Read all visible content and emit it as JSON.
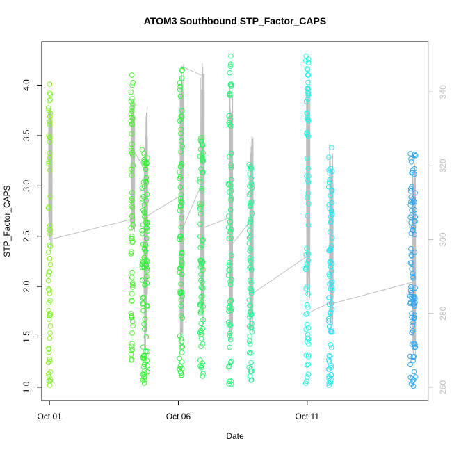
{
  "chart_data": {
    "type": "scatter",
    "title": "ATOM3 Southbound STP_Factor_CAPS",
    "xlabel": "Date",
    "ylabel": "STP_Factor_CAPS",
    "ylim": [
      1.0,
      4.3
    ],
    "y_right_lim": [
      260,
      350
    ],
    "x_ticks": [
      {
        "day": 1,
        "label": "Oct 01"
      },
      {
        "day": 6,
        "label": "Oct 06"
      },
      {
        "day": 11,
        "label": "Oct 11"
      }
    ],
    "y_ticks": [
      "1.0",
      "1.5",
      "2.0",
      "2.5",
      "3.0",
      "3.5",
      "4.0"
    ],
    "y_right_ticks": [
      "260",
      "280",
      "300",
      "320",
      "340"
    ],
    "xlim_days": [
      0.7,
      15.7
    ],
    "colors": {
      "axis": "#000000",
      "secondary_axis": "#bfbfbf",
      "secondary_line": "#bebebe",
      "point_palette": [
        "#7fff00",
        "#00ff00",
        "#00ff7f",
        "#00ffff",
        "#1e90ff"
      ]
    },
    "marker": "open-circle",
    "clusters": [
      {
        "day": 1.0,
        "width": 0.08,
        "color": "#86f22b",
        "y_min": 1.02,
        "y_max": 4.01,
        "y_right_min": 296,
        "y_right_max": 336
      },
      {
        "day": 4.2,
        "width": 0.08,
        "color": "#4cf22e",
        "y_min": 1.27,
        "y_max": 4.1,
        "y_right_min": 302,
        "y_right_max": 340
      },
      {
        "day": 4.7,
        "width": 0.22,
        "color": "#34f232",
        "y_min": 1.04,
        "y_max": 3.36,
        "y_right_min": 268,
        "y_right_max": 338
      },
      {
        "day": 6.1,
        "width": 0.12,
        "color": "#2df245",
        "y_min": 1.12,
        "y_max": 4.15,
        "y_right_min": 270,
        "y_right_max": 348
      },
      {
        "day": 6.9,
        "width": 0.14,
        "color": "#2ff261",
        "y_min": 1.11,
        "y_max": 3.48,
        "y_right_min": 276,
        "y_right_max": 348
      },
      {
        "day": 8.0,
        "width": 0.12,
        "color": "#2ff281",
        "y_min": 1.03,
        "y_max": 4.29,
        "y_right_min": 272,
        "y_right_max": 344
      },
      {
        "day": 8.8,
        "width": 0.12,
        "color": "#2ff29a",
        "y_min": 1.07,
        "y_max": 3.21,
        "y_right_min": 274,
        "y_right_max": 330
      },
      {
        "day": 11.0,
        "width": 0.12,
        "color": "#2ff2e4",
        "y_min": 1.04,
        "y_max": 4.29,
        "y_right_min": 282,
        "y_right_max": 344
      },
      {
        "day": 11.9,
        "width": 0.14,
        "color": "#2fe3f2",
        "y_min": 1.02,
        "y_max": 3.38,
        "y_right_min": 274,
        "y_right_max": 326
      },
      {
        "day": 15.1,
        "width": 0.22,
        "color": "#2fa6f2",
        "y_min": 1.01,
        "y_max": 3.32,
        "y_right_min": 266,
        "y_right_max": 322
      }
    ],
    "secondary_series": {
      "name": "",
      "gaps": [
        {
          "from_day": 1.0,
          "from_value": 300.0,
          "to_day": 4.2,
          "to_value": 305.5
        },
        {
          "from_day": 4.2,
          "from_value": 325.0,
          "to_day": 4.7,
          "to_value": 319.0
        },
        {
          "from_day": 4.7,
          "from_value": 306.0,
          "to_day": 6.1,
          "to_value": 312.0
        },
        {
          "from_day": 6.1,
          "from_value": 347.0,
          "to_day": 6.9,
          "to_value": 344.5
        },
        {
          "from_day": 6.1,
          "from_value": 302.0,
          "to_day": 6.9,
          "to_value": 315.0
        },
        {
          "from_day": 6.9,
          "from_value": 303.0,
          "to_day": 8.0,
          "to_value": 306.0
        },
        {
          "from_day": 8.0,
          "from_value": 298.0,
          "to_day": 8.8,
          "to_value": 305.0
        },
        {
          "from_day": 8.8,
          "from_value": 285.0,
          "to_day": 11.0,
          "to_value": 295.5
        },
        {
          "from_day": 11.0,
          "from_value": 280.0,
          "to_day": 11.9,
          "to_value": 283.0
        },
        {
          "from_day": 11.9,
          "from_value": 282.5,
          "to_day": 15.1,
          "to_value": 288.5
        }
      ]
    }
  }
}
